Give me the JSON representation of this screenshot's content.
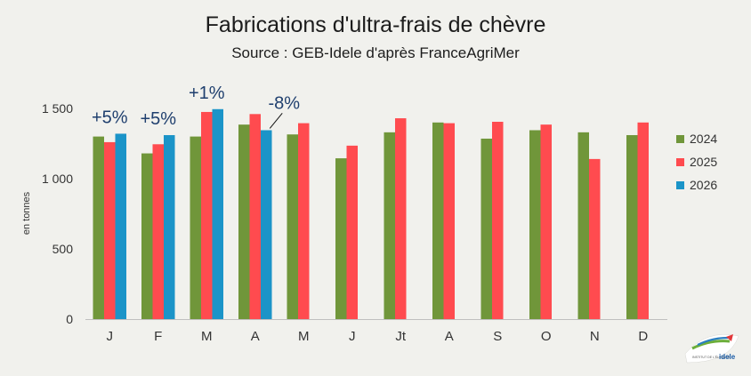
{
  "header": {
    "title": "Fabrications d'ultra-frais de chèvre",
    "subtitle": "Source : GEB-Idele d'après FranceAgriMer"
  },
  "logo": {
    "text_top": "INSTITUT DE L'ÉLEVAGE",
    "text_main": "idele"
  },
  "chart_data": {
    "type": "bar",
    "categories": [
      "J",
      "F",
      "M",
      "A",
      "M",
      "J",
      "Jt",
      "A",
      "S",
      "O",
      "N",
      "D"
    ],
    "series": [
      {
        "name": "2024",
        "color": "#70963a",
        "values": [
          1300,
          1180,
          1300,
          1385,
          1315,
          1145,
          1330,
          1400,
          1285,
          1345,
          1330,
          1310
        ]
      },
      {
        "name": "2025",
        "color": "#ff4b4f",
        "values": [
          1260,
          1245,
          1475,
          1460,
          1395,
          1235,
          1430,
          1395,
          1405,
          1385,
          1140,
          1400
        ]
      },
      {
        "name": "2026",
        "color": "#1b94c8",
        "values": [
          1320,
          1310,
          1495,
          1345,
          null,
          null,
          null,
          null,
          null,
          null,
          null,
          null
        ]
      }
    ],
    "ylabel": "en tonnes",
    "ylim": [
      0,
      1500
    ],
    "yticks": [
      0,
      500,
      1000,
      1500
    ],
    "ytick_labels": [
      "0",
      "500",
      "1 000",
      "1 500"
    ],
    "annotations": [
      {
        "text": "+5%",
        "category_index": 0
      },
      {
        "text": "+5%",
        "category_index": 1
      },
      {
        "text": "+1%",
        "category_index": 2
      },
      {
        "text": "-8%",
        "category_index": 3
      }
    ],
    "legend_position": "right",
    "grid": false
  }
}
